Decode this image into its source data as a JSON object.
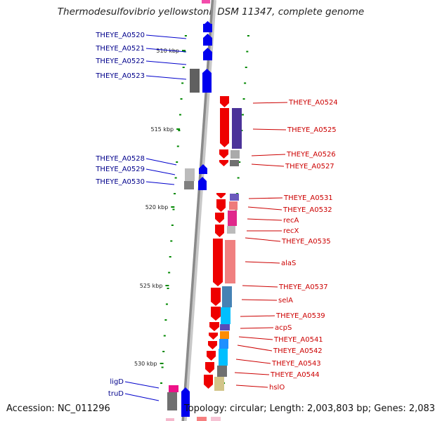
{
  "title": "Thermodesulfovibrio yellowstonii DSM 11347, complete genome",
  "footer": {
    "accession": "Accession: NC_011296",
    "info": "Topology: circular; Length: 2,003,803 bp; Genes: 2,083"
  },
  "colors": {
    "backbone": "#8a8a8a",
    "reverse_strand": "#0000ee",
    "forward_strand": "#ee0000",
    "tick": "#008800",
    "label_left": "#00008b",
    "label_right": "#cc0000"
  },
  "scale_labels": [
    "510 kbp",
    "515 kbp",
    "520 kbp",
    "525 kbp",
    "530 kbp"
  ],
  "genes_left": [
    "THEYE_A0520",
    "THEYE_A0521",
    "THEYE_A0522",
    "THEYE_A0523",
    "THEYE_A0528",
    "THEYE_A0529",
    "THEYE_A0530",
    "ligD",
    "truD"
  ],
  "genes_right": [
    "THEYE_A0524",
    "THEYE_A0525",
    "THEYE_A0526",
    "THEYE_A0527",
    "THEYE_A0531",
    "THEYE_A0532",
    "recA",
    "recX",
    "THEYE_A0535",
    "alaS",
    "THEYE_A0537",
    "selA",
    "THEYE_A0539",
    "acpS",
    "THEYE_A0541",
    "THEYE_A0542",
    "THEYE_A0543",
    "THEYE_A0544",
    "hslO"
  ]
}
